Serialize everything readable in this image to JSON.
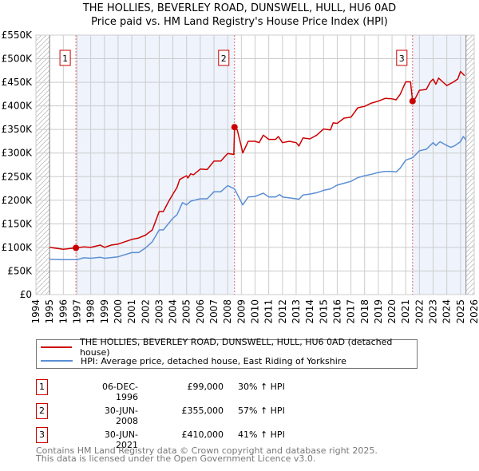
{
  "chart_data": {
    "type": "line",
    "title": "THE HOLLIES, BEVERLEY ROAD, DUNSWELL, HULL, HU6 0AD",
    "subtitle": "Price paid vs. HM Land Registry's House Price Index (HPI)",
    "xlim": [
      1994,
      2026
    ],
    "ylim": [
      0,
      550000
    ],
    "x_ticks": [
      "1994",
      "1995",
      "1996",
      "1997",
      "1998",
      "1999",
      "2000",
      "2001",
      "2002",
      "2003",
      "2004",
      "2005",
      "2006",
      "2007",
      "2008",
      "2009",
      "2010",
      "2011",
      "2012",
      "2013",
      "2014",
      "2015",
      "2016",
      "2017",
      "2018",
      "2019",
      "2020",
      "2021",
      "2022",
      "2023",
      "2024",
      "2025",
      "2026"
    ],
    "y_ticks": [
      {
        "value": 0,
        "label": "£0"
      },
      {
        "value": 50000,
        "label": "£50K"
      },
      {
        "value": 100000,
        "label": "£100K"
      },
      {
        "value": 150000,
        "label": "£150K"
      },
      {
        "value": 200000,
        "label": "£200K"
      },
      {
        "value": 250000,
        "label": "£250K"
      },
      {
        "value": 300000,
        "label": "£300K"
      },
      {
        "value": 350000,
        "label": "£350K"
      },
      {
        "value": 400000,
        "label": "£400K"
      },
      {
        "value": 450000,
        "label": "£450K"
      },
      {
        "value": 500000,
        "label": "£500K"
      },
      {
        "value": 550000,
        "label": "£550K"
      }
    ],
    "grid": true,
    "data_range": [
      1995,
      2025.4
    ],
    "series": [
      {
        "name": "THE HOLLIES, BEVERLEY ROAD, DUNSWELL, HULL, HU6 0AD (detached house)",
        "color": "#cc0000",
        "unit": "thousand GBP",
        "points": [
          [
            1995,
            100
          ],
          [
            1996,
            96
          ],
          [
            1996.92,
            99
          ],
          [
            1997.5,
            101
          ],
          [
            1998,
            100
          ],
          [
            1998.7,
            105
          ],
          [
            1999,
            100
          ],
          [
            1999.5,
            105
          ],
          [
            2000,
            107
          ],
          [
            2000.5,
            112
          ],
          [
            2001,
            117
          ],
          [
            2001.5,
            120
          ],
          [
            2002,
            126
          ],
          [
            2002.5,
            137
          ],
          [
            2003,
            176
          ],
          [
            2003.3,
            176
          ],
          [
            2003.7,
            198
          ],
          [
            2004,
            213
          ],
          [
            2004.3,
            227
          ],
          [
            2004.5,
            244
          ],
          [
            2005,
            252
          ],
          [
            2005.1,
            247
          ],
          [
            2005.3,
            256
          ],
          [
            2005.5,
            254
          ],
          [
            2006,
            266
          ],
          [
            2006.5,
            265
          ],
          [
            2007,
            283
          ],
          [
            2007.5,
            283
          ],
          [
            2008,
            299
          ],
          [
            2008.45,
            297
          ],
          [
            2008.5,
            355
          ],
          [
            2008.7,
            349
          ],
          [
            2009,
            314
          ],
          [
            2009.1,
            300
          ],
          [
            2009.5,
            325
          ],
          [
            2010,
            325
          ],
          [
            2010.3,
            322
          ],
          [
            2010.6,
            338
          ],
          [
            2011,
            329
          ],
          [
            2011.5,
            329
          ],
          [
            2011.7,
            335
          ],
          [
            2012,
            322
          ],
          [
            2012.5,
            325
          ],
          [
            2013,
            322
          ],
          [
            2013.2,
            315
          ],
          [
            2013.5,
            332
          ],
          [
            2014,
            330
          ],
          [
            2014.5,
            338
          ],
          [
            2015,
            351
          ],
          [
            2015.5,
            349
          ],
          [
            2015.7,
            364
          ],
          [
            2016,
            363
          ],
          [
            2016.5,
            374
          ],
          [
            2017,
            376
          ],
          [
            2017.5,
            396
          ],
          [
            2018,
            399
          ],
          [
            2018.5,
            406
          ],
          [
            2019,
            410
          ],
          [
            2019.5,
            416
          ],
          [
            2020,
            415
          ],
          [
            2020.3,
            413
          ],
          [
            2020.6,
            425
          ],
          [
            2021,
            451
          ],
          [
            2021.35,
            451
          ],
          [
            2021.5,
            410
          ],
          [
            2021.7,
            416
          ],
          [
            2022,
            433
          ],
          [
            2022.5,
            435
          ],
          [
            2022.8,
            451
          ],
          [
            2023,
            457
          ],
          [
            2023.2,
            446
          ],
          [
            2023.4,
            459
          ],
          [
            2023.7,
            451
          ],
          [
            2024,
            443
          ],
          [
            2024.5,
            451
          ],
          [
            2024.8,
            457
          ],
          [
            2025,
            473
          ],
          [
            2025.3,
            464
          ]
        ]
      },
      {
        "name": "HPI: Average price, detached house, East Riding of Yorkshire",
        "color": "#5b8fd4",
        "unit": "thousand GBP",
        "points": [
          [
            1995,
            75
          ],
          [
            1996,
            74
          ],
          [
            1997,
            74
          ],
          [
            1997.5,
            78
          ],
          [
            1998,
            77
          ],
          [
            1998.7,
            79
          ],
          [
            1999,
            77
          ],
          [
            2000,
            80
          ],
          [
            2001,
            89
          ],
          [
            2001.5,
            89
          ],
          [
            2002,
            99
          ],
          [
            2002.5,
            112
          ],
          [
            2003,
            137
          ],
          [
            2003.3,
            137
          ],
          [
            2004,
            162
          ],
          [
            2004.3,
            169
          ],
          [
            2004.7,
            195
          ],
          [
            2005,
            190
          ],
          [
            2005.3,
            198
          ],
          [
            2006,
            203
          ],
          [
            2006.5,
            203
          ],
          [
            2007,
            218
          ],
          [
            2007.5,
            218
          ],
          [
            2008,
            231
          ],
          [
            2008.5,
            224
          ],
          [
            2009.1,
            190
          ],
          [
            2009.5,
            207
          ],
          [
            2010,
            208
          ],
          [
            2010.6,
            215
          ],
          [
            2011,
            207
          ],
          [
            2011.5,
            207
          ],
          [
            2011.8,
            212
          ],
          [
            2012,
            207
          ],
          [
            2012.5,
            205
          ],
          [
            2013,
            203
          ],
          [
            2013.2,
            202
          ],
          [
            2013.5,
            211
          ],
          [
            2014,
            213
          ],
          [
            2014.5,
            216
          ],
          [
            2015,
            221
          ],
          [
            2015.5,
            224
          ],
          [
            2016,
            232
          ],
          [
            2016.5,
            236
          ],
          [
            2017,
            240
          ],
          [
            2017.5,
            248
          ],
          [
            2018,
            252
          ],
          [
            2018.5,
            255
          ],
          [
            2019,
            259
          ],
          [
            2019.5,
            261
          ],
          [
            2020,
            261
          ],
          [
            2020.3,
            260
          ],
          [
            2020.6,
            268
          ],
          [
            2021,
            285
          ],
          [
            2021.5,
            290
          ],
          [
            2022,
            305
          ],
          [
            2022.5,
            308
          ],
          [
            2023,
            322
          ],
          [
            2023.2,
            316
          ],
          [
            2023.5,
            324
          ],
          [
            2024,
            316
          ],
          [
            2024.3,
            312
          ],
          [
            2024.6,
            316
          ],
          [
            2025,
            324
          ],
          [
            2025.2,
            335
          ],
          [
            2025.4,
            328
          ]
        ]
      }
    ],
    "sales": [
      {
        "label": "1",
        "year": 1996.92,
        "price": 99000,
        "date": "06-DEC-1996",
        "price_text": "£99,000",
        "hpi_text": "30% ↑ HPI"
      },
      {
        "label": "2",
        "year": 2008.5,
        "price": 355000,
        "date": "30-JUN-2008",
        "price_text": "£355,000",
        "hpi_text": "57% ↑ HPI"
      },
      {
        "label": "3",
        "year": 2021.5,
        "price": 410000,
        "date": "30-JUN-2021",
        "price_text": "£410,000",
        "hpi_text": "41% ↑ HPI"
      }
    ]
  },
  "legend": {
    "property": "THE HOLLIES, BEVERLEY ROAD, DUNSWELL, HULL, HU6 0AD (detached house)",
    "hpi": "HPI: Average price, detached house, East Riding of Yorkshire"
  },
  "footer": {
    "line1": "Contains HM Land Registry data © Crown copyright and database right 2025.",
    "line2": "This data is licensed under the Open Government Licence v3.0."
  },
  "colors": {
    "property": "#cc0000",
    "hpi": "#5b8fd4",
    "shade": "#eef3fc",
    "grid": "#cccccc"
  }
}
